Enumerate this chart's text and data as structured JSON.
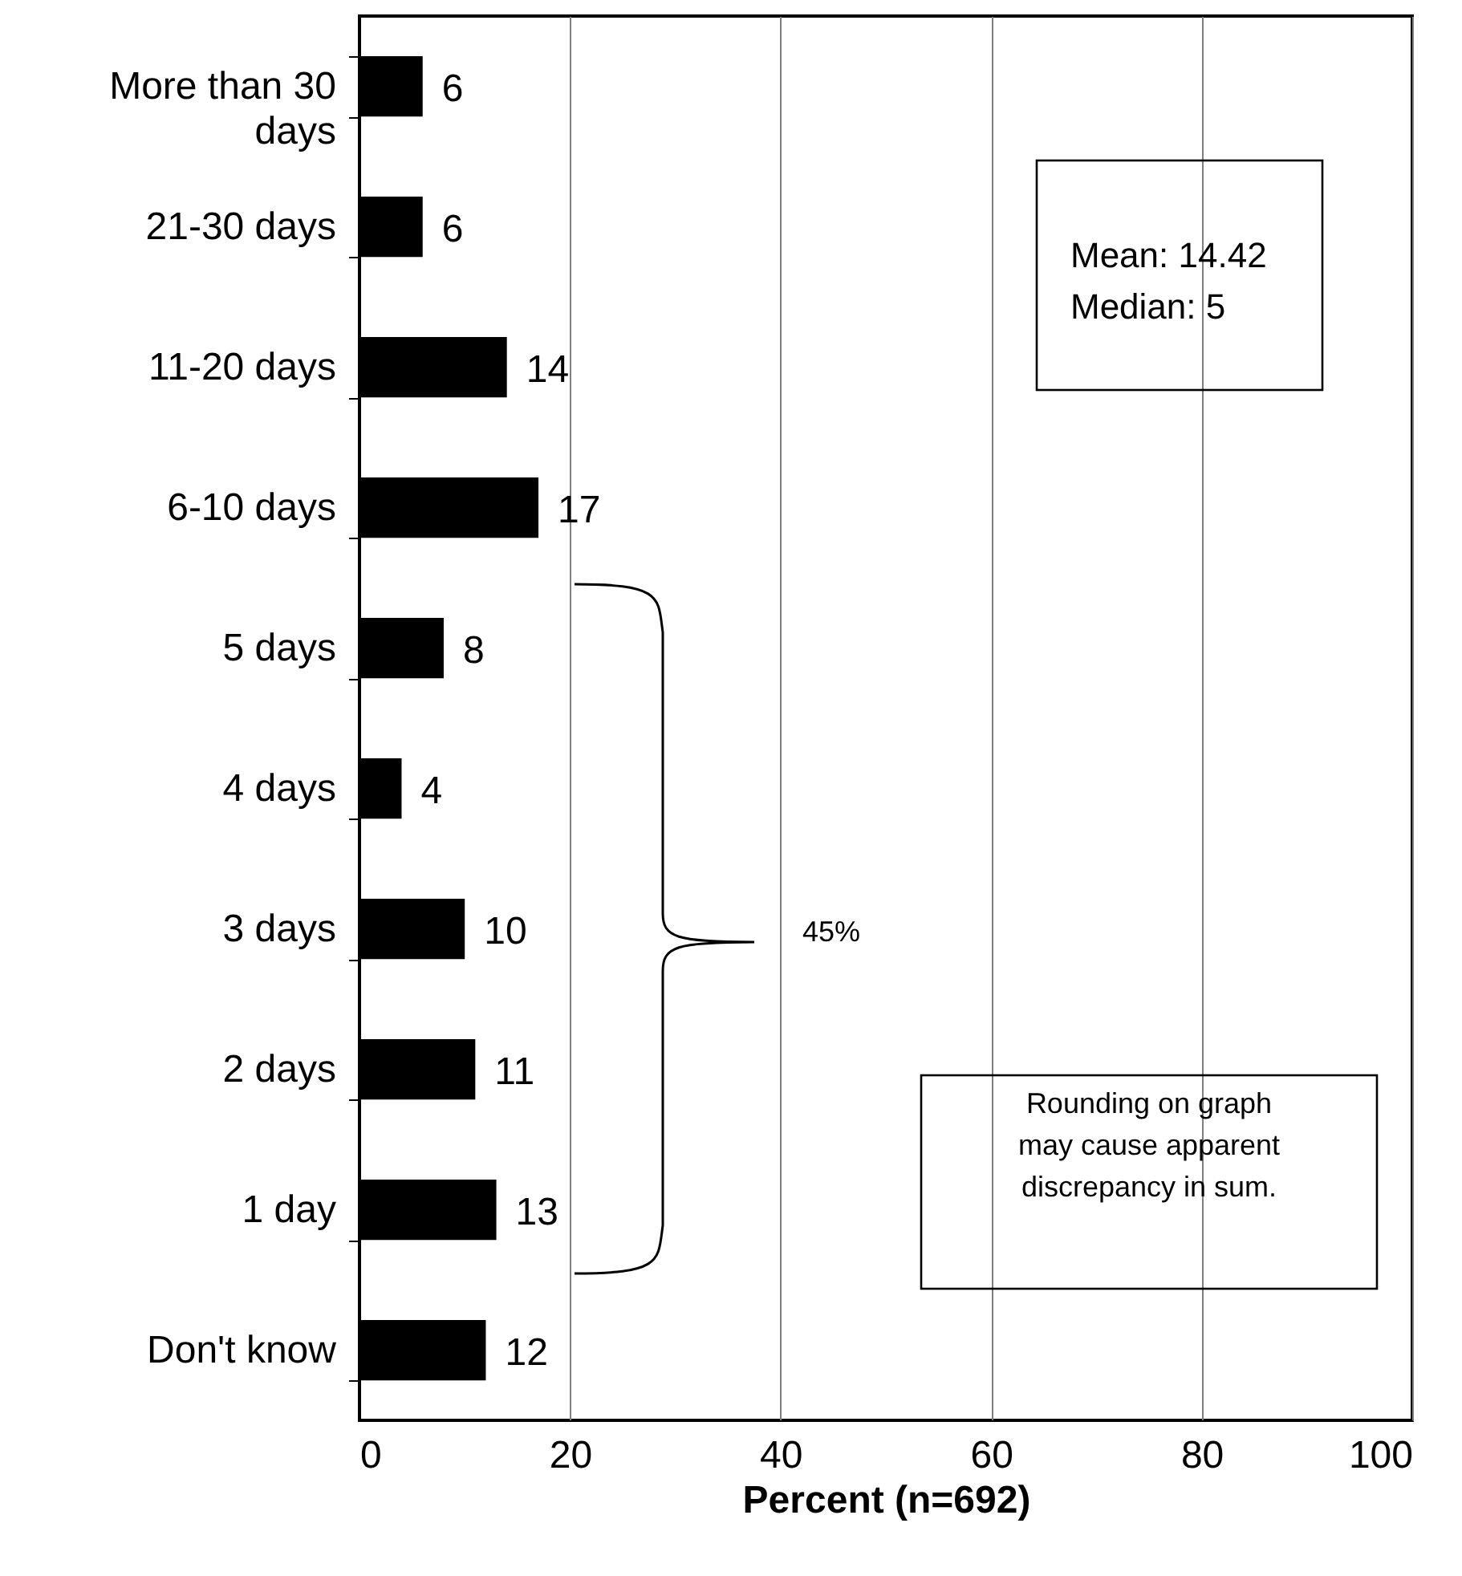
{
  "chart_data": {
    "type": "bar",
    "orientation": "horizontal",
    "categories": [
      "More than 30 days",
      "21-30 days",
      "11-20 days",
      "6-10 days",
      "5 days",
      "4 days",
      "3 days",
      "2 days",
      "1 day",
      "Don't know"
    ],
    "values": [
      6,
      6,
      14,
      17,
      8,
      4,
      10,
      11,
      13,
      12
    ],
    "color": "#000000",
    "xlim": [
      0,
      100
    ],
    "xticks": [
      0,
      20,
      40,
      60,
      80,
      100
    ],
    "xlabel": "Percent (n=692)",
    "grid": "x",
    "data_labels": true,
    "annotations": [
      "Mean: 14.42\nMedian: 5",
      "Rounding on graph may cause apparent discrepancy in sum.",
      "45%"
    ]
  }
}
